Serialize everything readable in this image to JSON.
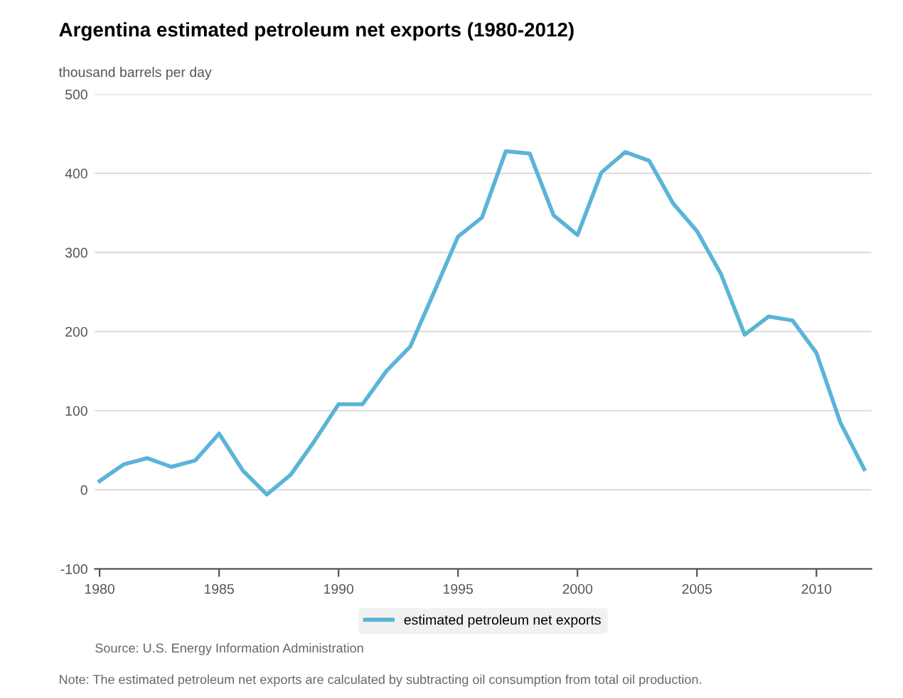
{
  "chart_data": {
    "type": "line",
    "title": "Argentina estimated petroleum net exports (1980-2012)",
    "ylabel": "thousand barrels per day",
    "x": [
      1980,
      1981,
      1982,
      1983,
      1984,
      1985,
      1986,
      1987,
      1988,
      1989,
      1990,
      1991,
      1992,
      1993,
      1994,
      1995,
      1996,
      1997,
      1998,
      1999,
      2000,
      2001,
      2002,
      2003,
      2004,
      2005,
      2006,
      2007,
      2008,
      2009,
      2010,
      2011,
      2012
    ],
    "series": [
      {
        "name": "estimated petroleum net exports",
        "color": "#5bb4d8",
        "values": [
          11,
          32,
          40,
          29,
          37,
          71,
          24,
          -6,
          19,
          62,
          108,
          108,
          150,
          181,
          250,
          320,
          344,
          428,
          425,
          347,
          322,
          401,
          427,
          416,
          362,
          327,
          273,
          196,
          219,
          214,
          173,
          85,
          26
        ]
      }
    ],
    "xlim": [
      1979.8,
      2012.3
    ],
    "xticks": [
      1980,
      1985,
      1990,
      1995,
      2000,
      2005,
      2010
    ],
    "ylim": [
      -100,
      500
    ],
    "yticks": [
      -100,
      0,
      100,
      200,
      300,
      400,
      500
    ],
    "grid": "y",
    "legend": "bottom",
    "marker": "none",
    "line_style": "solid",
    "annotations": [
      "Source: U.S. Energy Information Administration",
      "Note: The estimated petroleum net exports are calculated by subtracting oil consumption from total oil production."
    ]
  }
}
